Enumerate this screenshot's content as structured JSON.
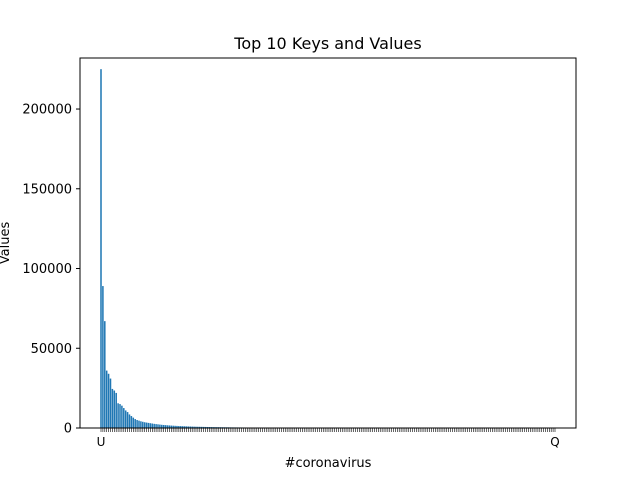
{
  "chart_data": {
    "type": "bar",
    "title": "Top 10 Keys and Values",
    "xlabel": "#coronavirus",
    "ylabel": "Values",
    "ylim": [
      0,
      232000
    ],
    "yticks": [
      0,
      50000,
      100000,
      150000,
      200000
    ],
    "ytick_labels": [
      "0",
      "50000",
      "100000",
      "150000",
      "200000"
    ],
    "grid": false,
    "legend": "none",
    "bar_color": "#1f77b4",
    "categories": [
      "U",
      "",
      "",
      "",
      "",
      "",
      "",
      "",
      "",
      "",
      "",
      "",
      "",
      "",
      "",
      "",
      "",
      "",
      "",
      "",
      "",
      "",
      "",
      "",
      "",
      "",
      "",
      "",
      "",
      "",
      "",
      "",
      "",
      "",
      "",
      "",
      "",
      "",
      "",
      "",
      "",
      "",
      "",
      "",
      "",
      "",
      "",
      "",
      "",
      "",
      "",
      "",
      "",
      "",
      "",
      "",
      "",
      "",
      "",
      "",
      "",
      "",
      "",
      "",
      "",
      "",
      "",
      "",
      "",
      "",
      "",
      "",
      "",
      "",
      "",
      "",
      "",
      "",
      "",
      "",
      "",
      "",
      "",
      "",
      "",
      "",
      "",
      "",
      "",
      "",
      "",
      "",
      "",
      "",
      "",
      "",
      "",
      "",
      "",
      "",
      "",
      "",
      "",
      "",
      "",
      "",
      "",
      "",
      "",
      "",
      "",
      "",
      "",
      "",
      "",
      "",
      "",
      "",
      "",
      "",
      "",
      "",
      "",
      "",
      "",
      "",
      "",
      "",
      "",
      "",
      "",
      "",
      "",
      "",
      "",
      "",
      "",
      "",
      "",
      "",
      "",
      "",
      "",
      "",
      "",
      "",
      "",
      "",
      "",
      "",
      "",
      "",
      "",
      "",
      "",
      "",
      "",
      "",
      "",
      "",
      "",
      "",
      "",
      "",
      "",
      "",
      "",
      "",
      "",
      "",
      "",
      "",
      "",
      "",
      "",
      "",
      "",
      "",
      "",
      "",
      "",
      "",
      "",
      "",
      "",
      "",
      "",
      "",
      "",
      "",
      "",
      "",
      "",
      "",
      "",
      "",
      "",
      "",
      "",
      "",
      "",
      "",
      "",
      "",
      "",
      "",
      "",
      "",
      "",
      "",
      "",
      "",
      "",
      "",
      "",
      "",
      "",
      "",
      "",
      "",
      "",
      "",
      "",
      "",
      "",
      "",
      "",
      "",
      "",
      "",
      "",
      "",
      "",
      "",
      "",
      "",
      "",
      "",
      "",
      "Q"
    ],
    "values": [
      225000,
      89000,
      67000,
      36000,
      34000,
      31000,
      24500,
      23500,
      22000,
      15500,
      15000,
      14000,
      12500,
      11000,
      10000,
      8500,
      7500,
      6500,
      5600,
      5000,
      4600,
      4200,
      3900,
      3600,
      3400,
      3200,
      3000,
      2800,
      2600,
      2450,
      2300,
      2150,
      2000,
      1900,
      1800,
      1700,
      1600,
      1520,
      1450,
      1380,
      1310,
      1250,
      1190,
      1130,
      1080,
      1030,
      980,
      940,
      900,
      860,
      820,
      790,
      760,
      730,
      700,
      670,
      640,
      620,
      600,
      580,
      560,
      540,
      520,
      500,
      480,
      465,
      450,
      435,
      420,
      405,
      390,
      378,
      366,
      354,
      342,
      330,
      319,
      308,
      297,
      286,
      276,
      266,
      256,
      247,
      238,
      229,
      220,
      212,
      204,
      196,
      189,
      182,
      175,
      168,
      162,
      156,
      150,
      144,
      139,
      134,
      129,
      124,
      119,
      115,
      111,
      107,
      103,
      99,
      95,
      92,
      89,
      86,
      83,
      80,
      77,
      74,
      71,
      69,
      67,
      65,
      63,
      61,
      59,
      57,
      55,
      53,
      51,
      49,
      47,
      45,
      43,
      41,
      40,
      39,
      38,
      37,
      36,
      35,
      34,
      33,
      32,
      31,
      30,
      29,
      28,
      27,
      26,
      25,
      24,
      23,
      22,
      21,
      20,
      19,
      18,
      17,
      16,
      15,
      14,
      13,
      12,
      12,
      11,
      11,
      10,
      10,
      9,
      9,
      8,
      8,
      7,
      7,
      6,
      6,
      5,
      5,
      5,
      4,
      4,
      4,
      3,
      3,
      3,
      3,
      2,
      2,
      2,
      2,
      2,
      1,
      1,
      1,
      1,
      1,
      1,
      1,
      1,
      1,
      1,
      1,
      1,
      1,
      1,
      1,
      1,
      1,
      1,
      1,
      1,
      1,
      1,
      1,
      1,
      1,
      1,
      1,
      1,
      1,
      1,
      1,
      1,
      1,
      1,
      1,
      1,
      1,
      1,
      1,
      1,
      1,
      1,
      1,
      1,
      1,
      1,
      1,
      1,
      1,
      1,
      1
    ]
  }
}
